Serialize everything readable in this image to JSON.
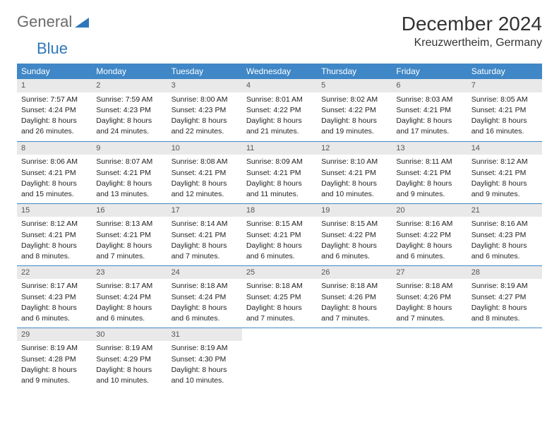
{
  "logo": {
    "text1": "General",
    "text2": "Blue"
  },
  "title": "December 2024",
  "location": "Kreuzwertheim, Germany",
  "colors": {
    "header_bg": "#3f87c6",
    "header_fg": "#ffffff",
    "daynum_bg": "#e9e9e9",
    "rule": "#3f87c6",
    "logo_gray": "#6a6a6a",
    "logo_blue": "#2f77b8"
  },
  "weekdays": [
    "Sunday",
    "Monday",
    "Tuesday",
    "Wednesday",
    "Thursday",
    "Friday",
    "Saturday"
  ],
  "days": {
    "1": {
      "sunrise": "Sunrise: 7:57 AM",
      "sunset": "Sunset: 4:24 PM",
      "day1": "Daylight: 8 hours",
      "day2": "and 26 minutes."
    },
    "2": {
      "sunrise": "Sunrise: 7:59 AM",
      "sunset": "Sunset: 4:23 PM",
      "day1": "Daylight: 8 hours",
      "day2": "and 24 minutes."
    },
    "3": {
      "sunrise": "Sunrise: 8:00 AM",
      "sunset": "Sunset: 4:23 PM",
      "day1": "Daylight: 8 hours",
      "day2": "and 22 minutes."
    },
    "4": {
      "sunrise": "Sunrise: 8:01 AM",
      "sunset": "Sunset: 4:22 PM",
      "day1": "Daylight: 8 hours",
      "day2": "and 21 minutes."
    },
    "5": {
      "sunrise": "Sunrise: 8:02 AM",
      "sunset": "Sunset: 4:22 PM",
      "day1": "Daylight: 8 hours",
      "day2": "and 19 minutes."
    },
    "6": {
      "sunrise": "Sunrise: 8:03 AM",
      "sunset": "Sunset: 4:21 PM",
      "day1": "Daylight: 8 hours",
      "day2": "and 17 minutes."
    },
    "7": {
      "sunrise": "Sunrise: 8:05 AM",
      "sunset": "Sunset: 4:21 PM",
      "day1": "Daylight: 8 hours",
      "day2": "and 16 minutes."
    },
    "8": {
      "sunrise": "Sunrise: 8:06 AM",
      "sunset": "Sunset: 4:21 PM",
      "day1": "Daylight: 8 hours",
      "day2": "and 15 minutes."
    },
    "9": {
      "sunrise": "Sunrise: 8:07 AM",
      "sunset": "Sunset: 4:21 PM",
      "day1": "Daylight: 8 hours",
      "day2": "and 13 minutes."
    },
    "10": {
      "sunrise": "Sunrise: 8:08 AM",
      "sunset": "Sunset: 4:21 PM",
      "day1": "Daylight: 8 hours",
      "day2": "and 12 minutes."
    },
    "11": {
      "sunrise": "Sunrise: 8:09 AM",
      "sunset": "Sunset: 4:21 PM",
      "day1": "Daylight: 8 hours",
      "day2": "and 11 minutes."
    },
    "12": {
      "sunrise": "Sunrise: 8:10 AM",
      "sunset": "Sunset: 4:21 PM",
      "day1": "Daylight: 8 hours",
      "day2": "and 10 minutes."
    },
    "13": {
      "sunrise": "Sunrise: 8:11 AM",
      "sunset": "Sunset: 4:21 PM",
      "day1": "Daylight: 8 hours",
      "day2": "and 9 minutes."
    },
    "14": {
      "sunrise": "Sunrise: 8:12 AM",
      "sunset": "Sunset: 4:21 PM",
      "day1": "Daylight: 8 hours",
      "day2": "and 9 minutes."
    },
    "15": {
      "sunrise": "Sunrise: 8:12 AM",
      "sunset": "Sunset: 4:21 PM",
      "day1": "Daylight: 8 hours",
      "day2": "and 8 minutes."
    },
    "16": {
      "sunrise": "Sunrise: 8:13 AM",
      "sunset": "Sunset: 4:21 PM",
      "day1": "Daylight: 8 hours",
      "day2": "and 7 minutes."
    },
    "17": {
      "sunrise": "Sunrise: 8:14 AM",
      "sunset": "Sunset: 4:21 PM",
      "day1": "Daylight: 8 hours",
      "day2": "and 7 minutes."
    },
    "18": {
      "sunrise": "Sunrise: 8:15 AM",
      "sunset": "Sunset: 4:21 PM",
      "day1": "Daylight: 8 hours",
      "day2": "and 6 minutes."
    },
    "19": {
      "sunrise": "Sunrise: 8:15 AM",
      "sunset": "Sunset: 4:22 PM",
      "day1": "Daylight: 8 hours",
      "day2": "and 6 minutes."
    },
    "20": {
      "sunrise": "Sunrise: 8:16 AM",
      "sunset": "Sunset: 4:22 PM",
      "day1": "Daylight: 8 hours",
      "day2": "and 6 minutes."
    },
    "21": {
      "sunrise": "Sunrise: 8:16 AM",
      "sunset": "Sunset: 4:23 PM",
      "day1": "Daylight: 8 hours",
      "day2": "and 6 minutes."
    },
    "22": {
      "sunrise": "Sunrise: 8:17 AM",
      "sunset": "Sunset: 4:23 PM",
      "day1": "Daylight: 8 hours",
      "day2": "and 6 minutes."
    },
    "23": {
      "sunrise": "Sunrise: 8:17 AM",
      "sunset": "Sunset: 4:24 PM",
      "day1": "Daylight: 8 hours",
      "day2": "and 6 minutes."
    },
    "24": {
      "sunrise": "Sunrise: 8:18 AM",
      "sunset": "Sunset: 4:24 PM",
      "day1": "Daylight: 8 hours",
      "day2": "and 6 minutes."
    },
    "25": {
      "sunrise": "Sunrise: 8:18 AM",
      "sunset": "Sunset: 4:25 PM",
      "day1": "Daylight: 8 hours",
      "day2": "and 7 minutes."
    },
    "26": {
      "sunrise": "Sunrise: 8:18 AM",
      "sunset": "Sunset: 4:26 PM",
      "day1": "Daylight: 8 hours",
      "day2": "and 7 minutes."
    },
    "27": {
      "sunrise": "Sunrise: 8:18 AM",
      "sunset": "Sunset: 4:26 PM",
      "day1": "Daylight: 8 hours",
      "day2": "and 7 minutes."
    },
    "28": {
      "sunrise": "Sunrise: 8:19 AM",
      "sunset": "Sunset: 4:27 PM",
      "day1": "Daylight: 8 hours",
      "day2": "and 8 minutes."
    },
    "29": {
      "sunrise": "Sunrise: 8:19 AM",
      "sunset": "Sunset: 4:28 PM",
      "day1": "Daylight: 8 hours",
      "day2": "and 9 minutes."
    },
    "30": {
      "sunrise": "Sunrise: 8:19 AM",
      "sunset": "Sunset: 4:29 PM",
      "day1": "Daylight: 8 hours",
      "day2": "and 10 minutes."
    },
    "31": {
      "sunrise": "Sunrise: 8:19 AM",
      "sunset": "Sunset: 4:30 PM",
      "day1": "Daylight: 8 hours",
      "day2": "and 10 minutes."
    }
  },
  "layout": [
    [
      1,
      2,
      3,
      4,
      5,
      6,
      7
    ],
    [
      8,
      9,
      10,
      11,
      12,
      13,
      14
    ],
    [
      15,
      16,
      17,
      18,
      19,
      20,
      21
    ],
    [
      22,
      23,
      24,
      25,
      26,
      27,
      28
    ],
    [
      29,
      30,
      31,
      0,
      0,
      0,
      0
    ]
  ]
}
